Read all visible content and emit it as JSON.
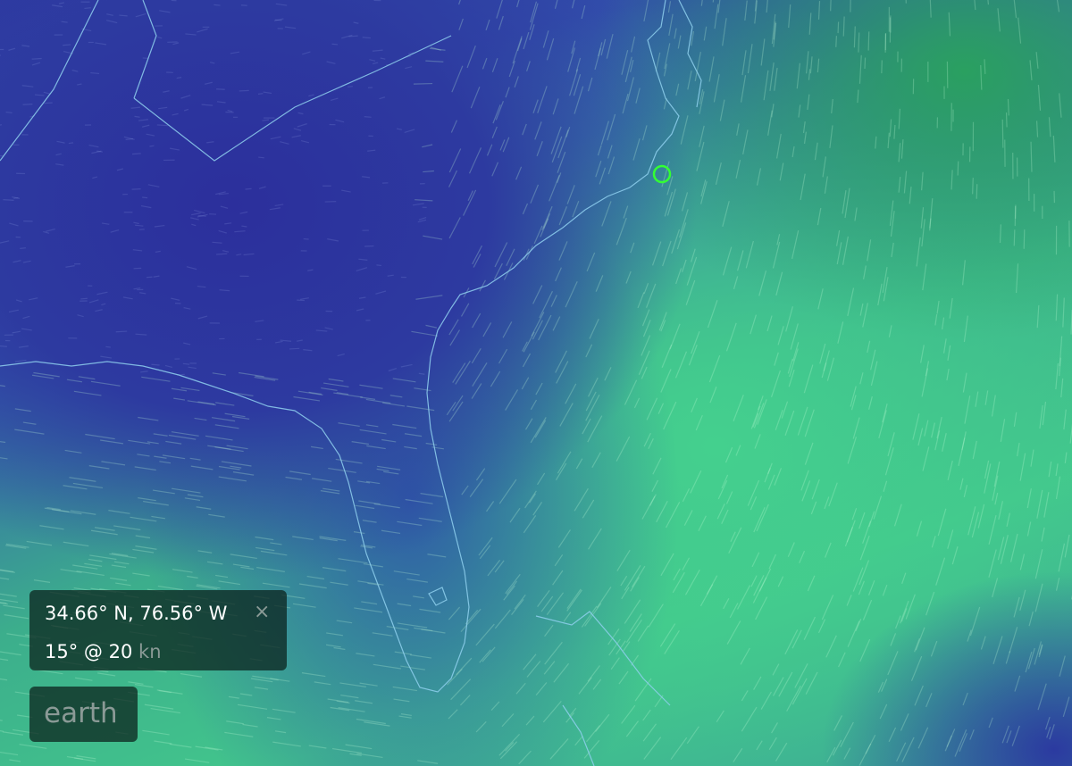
{
  "map": {
    "layer": "wind",
    "marker": {
      "lat": 34.66,
      "lon": -76.56,
      "color": "#33ff33"
    },
    "colors": {
      "low_speed": "#2c2f9c",
      "high_speed": "#44d08e",
      "coastline": "#7fc8e8"
    }
  },
  "location_panel": {
    "coordinates": "34.66° N, 76.56° W",
    "close_icon": "×",
    "wind_direction": "15°",
    "at": "@",
    "wind_speed": "20",
    "unit": "kn"
  },
  "menu_button": {
    "label": "earth"
  }
}
